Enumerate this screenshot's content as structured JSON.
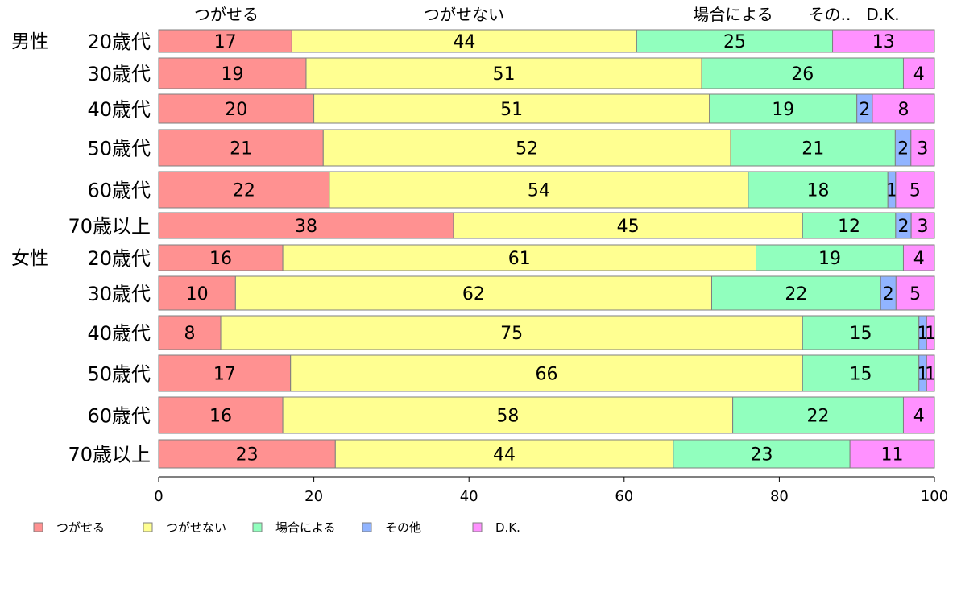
{
  "chart_data": {
    "type": "bar",
    "orientation": "horizontal",
    "stacked": true,
    "xlim": [
      0,
      100
    ],
    "x_ticks": [
      "0",
      "20",
      "40",
      "60",
      "80",
      "100"
    ],
    "top_labels": [
      "つがせる",
      "つがせない",
      "場合による",
      "その..",
      "D.K."
    ],
    "groups": [
      "男性",
      "女性"
    ],
    "categories": [
      "20歳代",
      "30歳代",
      "40歳代",
      "50歳代",
      "60歳代",
      "70歳以上",
      "20歳代",
      "30歳代",
      "40歳代",
      "50歳代",
      "60歳代",
      "70歳以上"
    ],
    "series": [
      {
        "name": "つがせる",
        "color": "#ff9191",
        "values": [
          17,
          19,
          20,
          21,
          22,
          38,
          16,
          10,
          8,
          17,
          16,
          23
        ]
      },
      {
        "name": "つがせない",
        "color": "#ffff91",
        "values": [
          44,
          51,
          51,
          52,
          54,
          45,
          61,
          62,
          75,
          66,
          58,
          44
        ]
      },
      {
        "name": "場合による",
        "color": "#91ffbe",
        "values": [
          25,
          26,
          19,
          21,
          18,
          12,
          19,
          22,
          15,
          15,
          22,
          23
        ]
      },
      {
        "name": "その他",
        "color": "#91b4ff",
        "values": [
          0,
          0,
          2,
          2,
          1,
          2,
          0,
          2,
          1,
          1,
          0,
          0
        ]
      },
      {
        "name": "D.K.",
        "color": "#ff91ff",
        "values": [
          13,
          4,
          8,
          3,
          5,
          3,
          4,
          5,
          1,
          1,
          4,
          11
        ]
      }
    ],
    "row_totals": [
      99,
      100,
      100,
      99,
      100,
      100,
      100,
      101,
      100,
      100,
      100,
      101
    ],
    "legend_position": "bottom-left",
    "grid": false
  }
}
